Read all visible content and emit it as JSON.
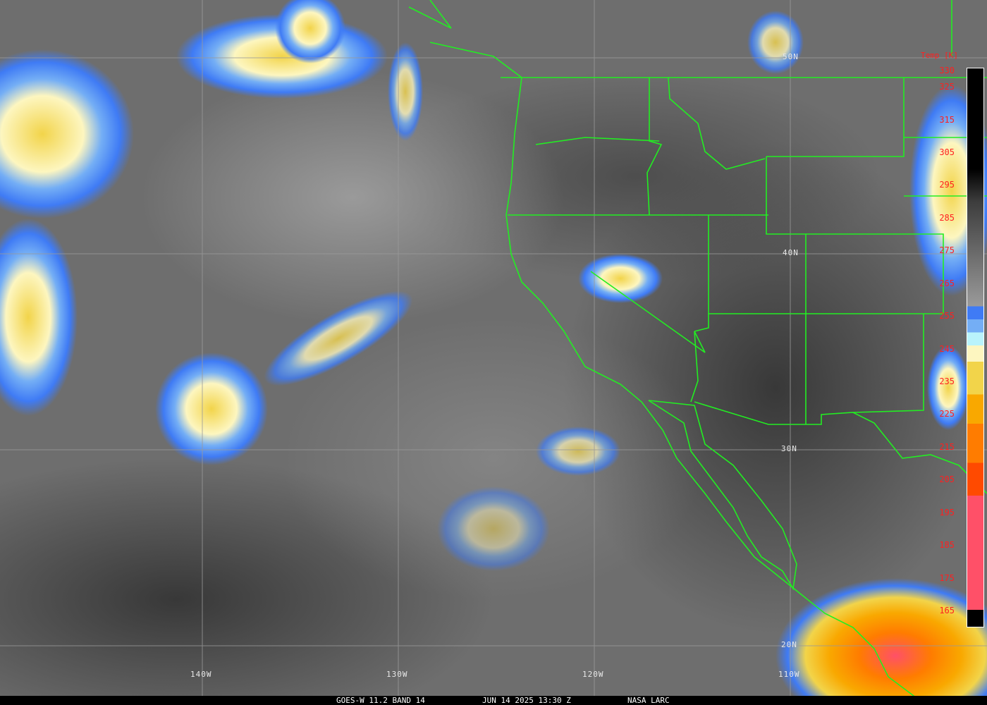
{
  "map": {
    "lat_labels": [
      "50N",
      "40N",
      "30N",
      "20N"
    ],
    "lon_labels": [
      "140W",
      "130W",
      "120W",
      "110W"
    ],
    "border_color": "#22ee22",
    "grid_color": "#9a9a9a"
  },
  "legend": {
    "title": "Temp [K]",
    "ticks": [
      "330",
      "325",
      "315",
      "305",
      "295",
      "285",
      "275",
      "265",
      "255",
      "245",
      "235",
      "225",
      "215",
      "205",
      "195",
      "185",
      "175",
      "165"
    ],
    "colors": [
      "#000000",
      "#3d3d3d",
      "#9a9a9a",
      "#3f7bf5",
      "#74aef5",
      "#b9f3fb",
      "#fdf6c0",
      "#f2d44a",
      "#f9a800",
      "#ff7c00",
      "#ff4a00",
      "#ff5068"
    ]
  },
  "caption": {
    "satellite": "GOES-W 11.2 BAND 14",
    "datetime": "JUN 14 2025 13:30 Z",
    "source": "NASA LARC"
  }
}
